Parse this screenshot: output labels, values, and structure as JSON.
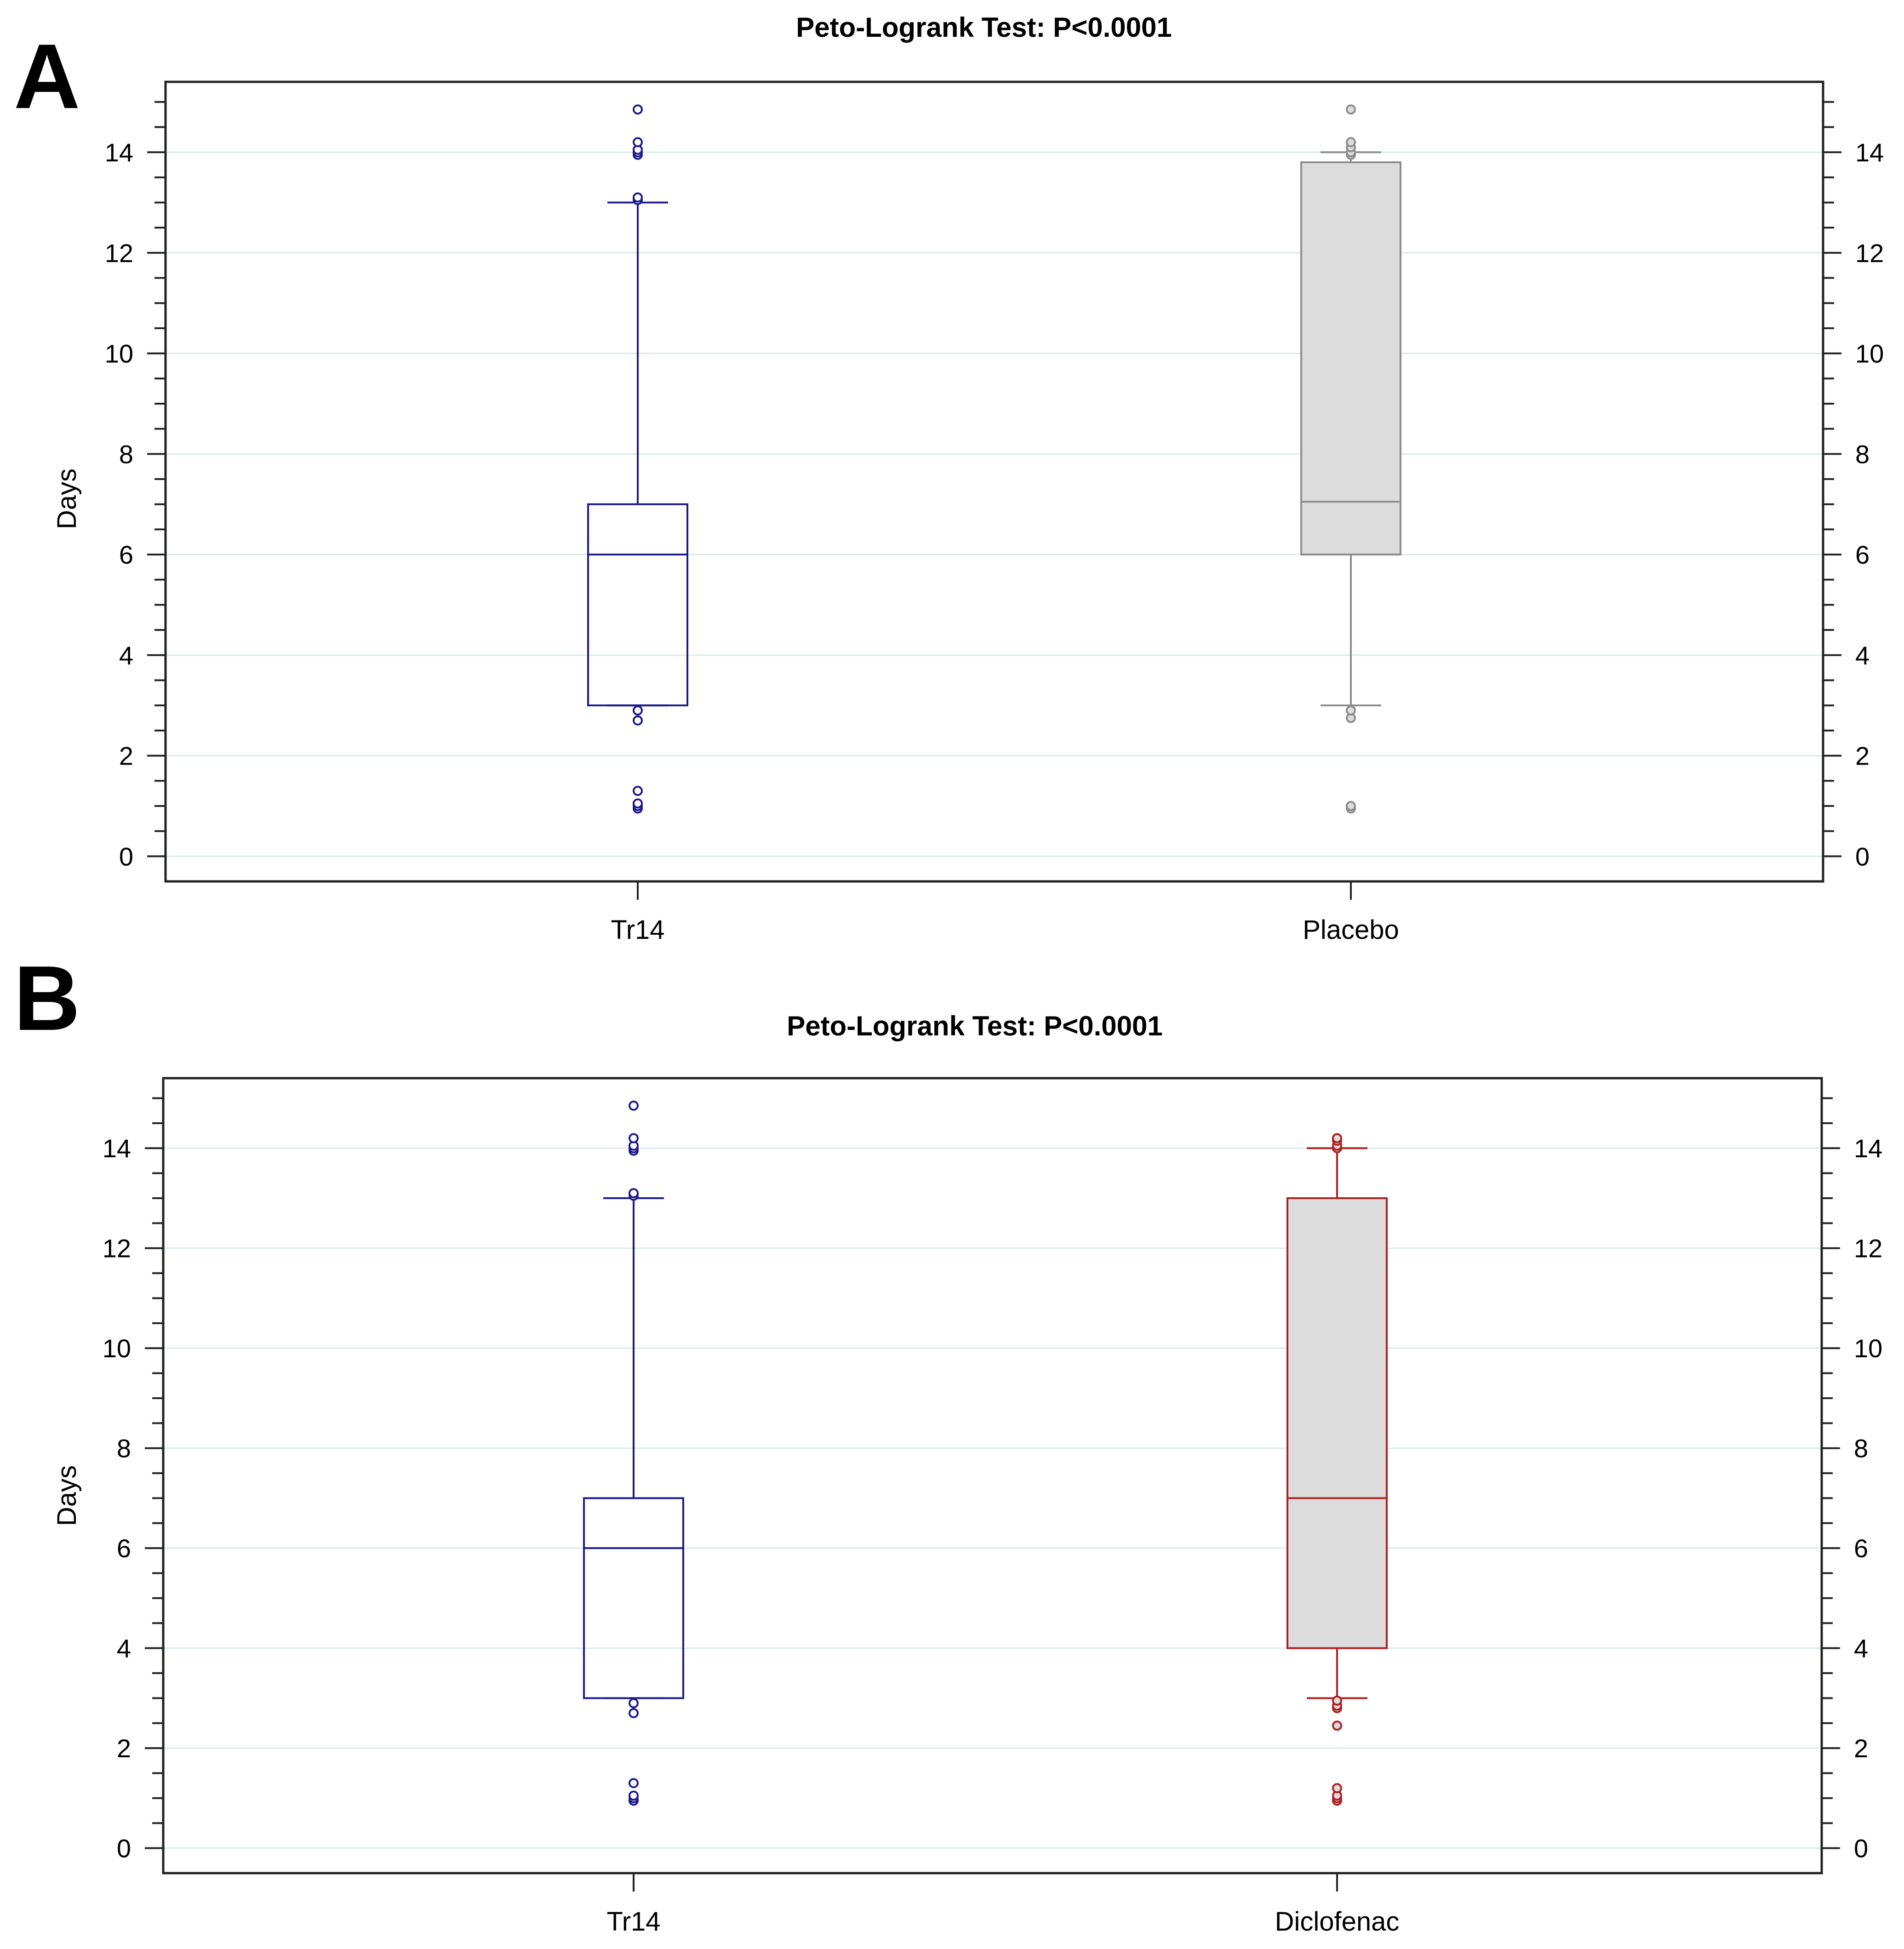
{
  "figure": {
    "panels": [
      "A",
      "B"
    ]
  },
  "chart_data": [
    {
      "type": "box",
      "panel": "A",
      "title": "Peto-Logrank Test: P<0.0001",
      "xlabel": "",
      "ylabel": "Days",
      "ylim": [
        -0.5,
        15.4
      ],
      "yticks": [
        0,
        2,
        4,
        6,
        8,
        10,
        12,
        14
      ],
      "grid": true,
      "categories": [
        "Tr14",
        "Placebo"
      ],
      "series": [
        {
          "category": "Tr14",
          "color": "#1a1a8c",
          "fill": "none",
          "whisker_low": 3,
          "q1": 3,
          "median": 6,
          "q3": 7,
          "whisker_high": 13,
          "outliers": [
            0.95,
            1.0,
            1.05,
            1.3,
            2.7,
            2.9,
            13.05,
            13.1,
            13.95,
            14.0,
            14.05,
            14.2,
            14.85
          ]
        },
        {
          "category": "Placebo",
          "color": "#8c8c8c",
          "fill": "#dcdcdc",
          "whisker_low": 3,
          "q1": 6,
          "median": 7.05,
          "q3": 13.8,
          "whisker_high": 14,
          "outliers": [
            0.95,
            1.0,
            2.75,
            2.9,
            13.95,
            14.0,
            14.1,
            14.2,
            14.85
          ]
        }
      ]
    },
    {
      "type": "box",
      "panel": "B",
      "title": "Peto-Logrank Test: P<0.0001",
      "xlabel": "",
      "ylabel": "Days",
      "ylim": [
        -0.5,
        15.4
      ],
      "yticks": [
        0,
        2,
        4,
        6,
        8,
        10,
        12,
        14
      ],
      "grid": true,
      "categories": [
        "Tr14",
        "Diclofenac"
      ],
      "series": [
        {
          "category": "Tr14",
          "color": "#1a1a8c",
          "fill": "none",
          "whisker_low": 3,
          "q1": 3,
          "median": 6,
          "q3": 7,
          "whisker_high": 13,
          "outliers": [
            0.95,
            1.0,
            1.05,
            1.3,
            2.7,
            2.9,
            13.05,
            13.1,
            13.95,
            14.0,
            14.05,
            14.2,
            14.85
          ]
        },
        {
          "category": "Diclofenac",
          "color": "#b01e1e",
          "fill": "#dcdcdc",
          "whisker_low": 3,
          "q1": 4,
          "median": 7,
          "q3": 13,
          "whisker_high": 14,
          "outliers": [
            0.95,
            1.0,
            1.05,
            1.2,
            2.45,
            2.8,
            2.85,
            2.95,
            14.0,
            14.05,
            14.15,
            14.2
          ]
        }
      ]
    }
  ]
}
